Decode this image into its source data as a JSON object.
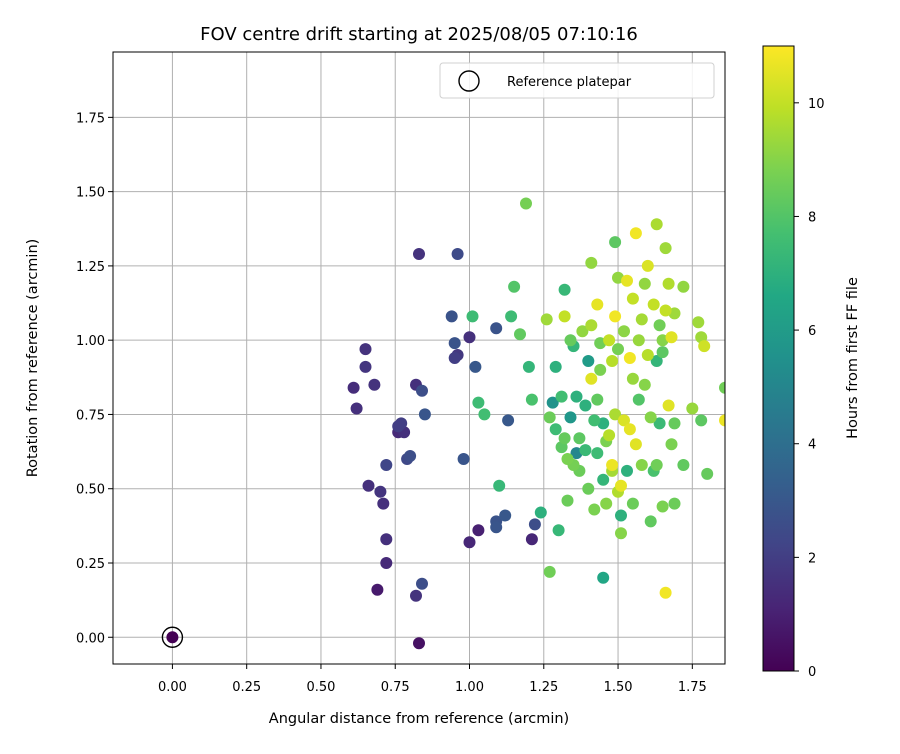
{
  "chart_data": {
    "type": "scatter",
    "title": "FOV centre drift starting at 2025/08/05 07:10:16",
    "xlabel": "Angular distance from reference (arcmin)",
    "ylabel": "Rotation from reference (arcmin)",
    "xlim": [
      -0.2,
      1.86
    ],
    "ylim": [
      -0.09,
      1.97
    ],
    "xticks": [
      "0.00",
      "0.25",
      "0.50",
      "0.75",
      "1.00",
      "1.25",
      "1.50",
      "1.75"
    ],
    "yticks": [
      "0.00",
      "0.25",
      "0.50",
      "0.75",
      "1.00",
      "1.25",
      "1.50",
      "1.75"
    ],
    "grid": true,
    "legend": {
      "placement": "top-right",
      "label": "Reference platepar"
    },
    "reference_point": {
      "x": 0.0,
      "y": 0.0
    },
    "colorbar": {
      "label": "Hours from first FF file",
      "range": [
        0,
        11
      ],
      "ticks": [
        "0",
        "2",
        "4",
        "6",
        "8",
        "10"
      ],
      "colormap": "viridis"
    },
    "series": [
      {
        "columns": [
          "x",
          "y",
          "hours"
        ],
        "points": [
          [
            0.0,
            0.0,
            0.0
          ],
          [
            0.83,
            -0.02,
            0.5
          ],
          [
            0.69,
            0.16,
            0.8
          ],
          [
            0.82,
            0.14,
            1.6
          ],
          [
            0.84,
            0.18,
            2.6
          ],
          [
            0.72,
            0.25,
            1.3
          ],
          [
            0.72,
            0.33,
            1.5
          ],
          [
            0.71,
            0.45,
            1.5
          ],
          [
            0.7,
            0.49,
            1.7
          ],
          [
            0.66,
            0.51,
            1.5
          ],
          [
            0.72,
            0.58,
            2.3
          ],
          [
            0.79,
            0.6,
            2.4
          ],
          [
            0.8,
            0.61,
            2.6
          ],
          [
            0.76,
            0.69,
            1.3
          ],
          [
            0.78,
            0.69,
            1.5
          ],
          [
            0.76,
            0.71,
            2.0
          ],
          [
            0.77,
            0.72,
            2.0
          ],
          [
            0.62,
            0.77,
            1.5
          ],
          [
            0.61,
            0.84,
            1.4
          ],
          [
            0.68,
            0.85,
            1.6
          ],
          [
            0.82,
            0.85,
            1.5
          ],
          [
            0.84,
            0.83,
            2.6
          ],
          [
            0.85,
            0.75,
            2.9
          ],
          [
            0.65,
            0.91,
            1.7
          ],
          [
            0.65,
            0.97,
            1.6
          ],
          [
            0.83,
            1.29,
            1.6
          ],
          [
            0.96,
            1.29,
            2.5
          ],
          [
            0.95,
            0.99,
            2.8
          ],
          [
            0.95,
            0.94,
            2.0
          ],
          [
            0.96,
            0.95,
            1.8
          ],
          [
            0.94,
            1.08,
            2.8
          ],
          [
            1.0,
            1.01,
            1.5
          ],
          [
            1.02,
            0.91,
            3.0
          ],
          [
            1.09,
            1.04,
            2.8
          ],
          [
            0.98,
            0.6,
            2.9
          ],
          [
            1.0,
            0.32,
            1.2
          ],
          [
            1.03,
            0.36,
            1.0
          ],
          [
            1.09,
            0.37,
            2.9
          ],
          [
            1.09,
            0.39,
            2.8
          ],
          [
            1.12,
            0.41,
            3.0
          ],
          [
            1.21,
            0.33,
            1.2
          ],
          [
            1.22,
            0.38,
            2.6
          ],
          [
            1.13,
            0.73,
            3.0
          ],
          [
            1.01,
            1.08,
            7.5
          ],
          [
            1.03,
            0.79,
            7.5
          ],
          [
            1.05,
            0.75,
            7.6
          ],
          [
            1.1,
            0.51,
            7.3
          ],
          [
            1.14,
            1.08,
            7.5
          ],
          [
            1.15,
            1.18,
            8.0
          ],
          [
            1.17,
            1.02,
            8.3
          ],
          [
            1.19,
            1.46,
            8.7
          ],
          [
            1.2,
            0.91,
            7.2
          ],
          [
            1.21,
            0.8,
            7.8
          ],
          [
            1.24,
            0.42,
            7.0
          ],
          [
            1.26,
            1.07,
            9.4
          ],
          [
            1.27,
            0.22,
            8.6
          ],
          [
            1.27,
            0.74,
            8.5
          ],
          [
            1.28,
            0.79,
            5.6
          ],
          [
            1.29,
            0.7,
            7.5
          ],
          [
            1.29,
            0.91,
            7.0
          ],
          [
            1.3,
            0.36,
            7.3
          ],
          [
            1.31,
            0.64,
            8.2
          ],
          [
            1.31,
            0.81,
            7.6
          ],
          [
            1.32,
            1.17,
            7.3
          ],
          [
            1.32,
            0.67,
            8.4
          ],
          [
            1.32,
            1.08,
            10.0
          ],
          [
            1.33,
            0.46,
            8.5
          ],
          [
            1.33,
            0.6,
            8.8
          ],
          [
            1.34,
            0.74,
            5.8
          ],
          [
            1.34,
            1.0,
            8.4
          ],
          [
            1.35,
            0.58,
            8.7
          ],
          [
            1.35,
            0.98,
            7.2
          ],
          [
            1.36,
            0.81,
            7.0
          ],
          [
            1.36,
            0.62,
            5.0
          ],
          [
            1.37,
            0.67,
            8.2
          ],
          [
            1.37,
            0.56,
            8.5
          ],
          [
            1.38,
            1.03,
            9.2
          ],
          [
            1.39,
            0.63,
            7.4
          ],
          [
            1.39,
            0.78,
            7.0
          ],
          [
            1.4,
            0.93,
            6.0
          ],
          [
            1.4,
            0.5,
            8.5
          ],
          [
            1.41,
            1.26,
            9.2
          ],
          [
            1.41,
            1.05,
            9.6
          ],
          [
            1.41,
            0.87,
            10.5
          ],
          [
            1.42,
            0.73,
            7.6
          ],
          [
            1.42,
            0.43,
            8.8
          ],
          [
            1.43,
            0.62,
            7.5
          ],
          [
            1.43,
            0.8,
            8.3
          ],
          [
            1.43,
            1.12,
            10.6
          ],
          [
            1.44,
            0.99,
            8.6
          ],
          [
            1.44,
            0.9,
            8.8
          ],
          [
            1.45,
            0.2,
            6.5
          ],
          [
            1.45,
            0.53,
            7.2
          ],
          [
            1.45,
            0.72,
            7.0
          ],
          [
            1.46,
            0.66,
            8.8
          ],
          [
            1.46,
            0.45,
            9.0
          ],
          [
            1.47,
            0.68,
            9.8
          ],
          [
            1.47,
            1.0,
            10.0
          ],
          [
            1.48,
            0.93,
            9.8
          ],
          [
            1.48,
            0.58,
            10.7
          ],
          [
            1.48,
            0.56,
            9.5
          ],
          [
            1.49,
            1.33,
            8.2
          ],
          [
            1.49,
            1.08,
            10.8
          ],
          [
            1.49,
            0.75,
            9.6
          ],
          [
            1.5,
            0.49,
            9.7
          ],
          [
            1.5,
            1.21,
            9.2
          ],
          [
            1.5,
            0.97,
            8.7
          ],
          [
            1.51,
            0.41,
            7.0
          ],
          [
            1.51,
            0.35,
            9.0
          ],
          [
            1.51,
            0.51,
            10.6
          ],
          [
            1.52,
            0.73,
            10.4
          ],
          [
            1.52,
            1.03,
            9.1
          ],
          [
            1.53,
            0.56,
            7.0
          ],
          [
            1.53,
            1.2,
            10.6
          ],
          [
            1.54,
            0.7,
            10.6
          ],
          [
            1.54,
            0.94,
            10.8
          ],
          [
            1.55,
            0.45,
            8.5
          ],
          [
            1.55,
            0.87,
            9.3
          ],
          [
            1.55,
            1.14,
            10.0
          ],
          [
            1.56,
            1.36,
            10.8
          ],
          [
            1.56,
            0.65,
            10.5
          ],
          [
            1.57,
            0.8,
            8.0
          ],
          [
            1.57,
            1.0,
            9.3
          ],
          [
            1.58,
            1.07,
            9.5
          ],
          [
            1.58,
            0.58,
            9.0
          ],
          [
            1.59,
            0.85,
            9.0
          ],
          [
            1.59,
            1.19,
            9.2
          ],
          [
            1.6,
            1.25,
            10.4
          ],
          [
            1.6,
            0.95,
            9.8
          ],
          [
            1.61,
            0.39,
            8.3
          ],
          [
            1.61,
            0.74,
            9.0
          ],
          [
            1.62,
            1.12,
            10.0
          ],
          [
            1.62,
            0.56,
            7.8
          ],
          [
            1.63,
            0.58,
            8.6
          ],
          [
            1.63,
            0.93,
            7.2
          ],
          [
            1.63,
            1.39,
            9.6
          ],
          [
            1.64,
            0.72,
            7.4
          ],
          [
            1.64,
            1.05,
            8.6
          ],
          [
            1.65,
            0.96,
            8.2
          ],
          [
            1.65,
            0.44,
            8.8
          ],
          [
            1.65,
            1.0,
            9.0
          ],
          [
            1.66,
            0.15,
            10.8
          ],
          [
            1.66,
            1.31,
            9.4
          ],
          [
            1.66,
            1.1,
            10.0
          ],
          [
            1.67,
            0.78,
            10.5
          ],
          [
            1.67,
            1.19,
            9.7
          ],
          [
            1.68,
            1.01,
            10.5
          ],
          [
            1.68,
            0.65,
            8.8
          ],
          [
            1.69,
            1.09,
            9.4
          ],
          [
            1.69,
            0.45,
            8.5
          ],
          [
            1.69,
            0.72,
            8.4
          ],
          [
            1.72,
            1.18,
            9.2
          ],
          [
            1.72,
            0.58,
            8.3
          ],
          [
            1.75,
            0.77,
            9.3
          ],
          [
            1.77,
            1.06,
            9.4
          ],
          [
            1.78,
            1.01,
            9.4
          ],
          [
            1.78,
            0.73,
            8.2
          ],
          [
            1.79,
            0.98,
            10.2
          ],
          [
            1.8,
            0.55,
            8.4
          ],
          [
            1.86,
            0.73,
            10.7
          ],
          [
            1.86,
            0.84,
            8.6
          ]
        ]
      }
    ]
  }
}
